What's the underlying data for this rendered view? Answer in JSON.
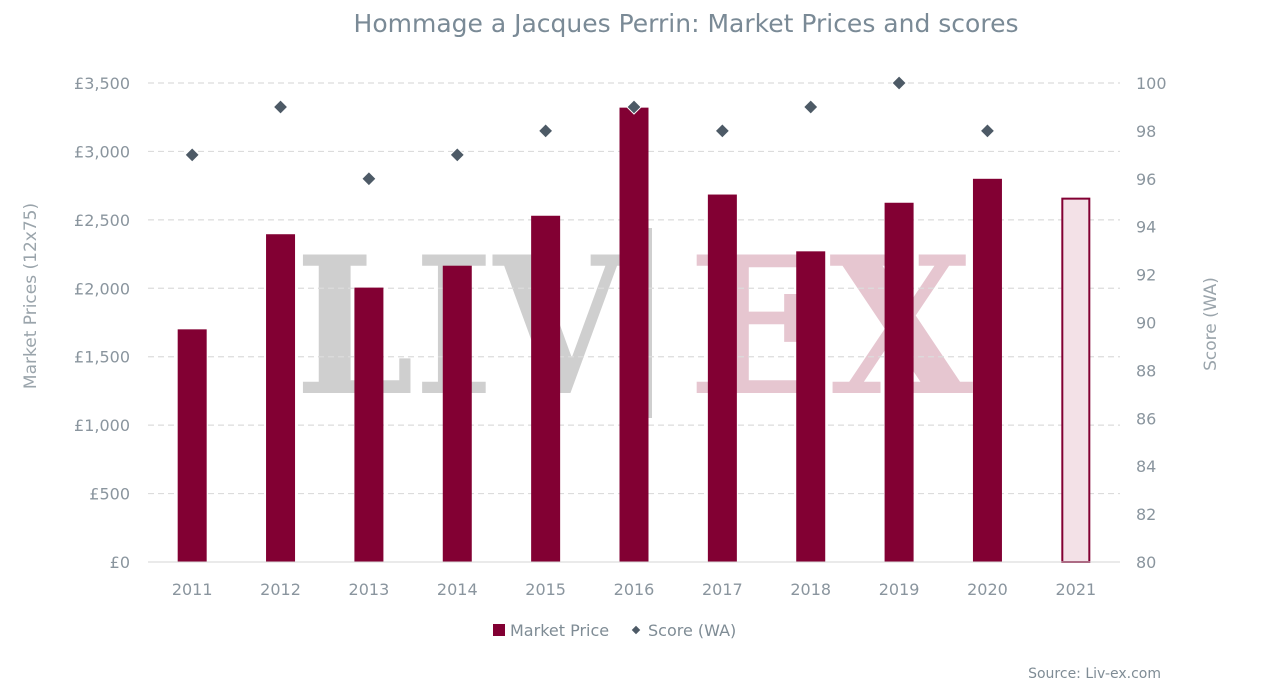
{
  "chart_data": {
    "type": "bar",
    "title": "Hommage a Jacques Perrin: Market Prices and scores",
    "categories": [
      "2011",
      "2012",
      "2013",
      "2014",
      "2015",
      "2016",
      "2017",
      "2018",
      "2019",
      "2020",
      "2021"
    ],
    "series": [
      {
        "name": "Market Price",
        "type": "bar",
        "axis": "left",
        "color": "#820033",
        "values": [
          1700,
          2395,
          2005,
          2165,
          2530,
          3320,
          2685,
          2270,
          2625,
          2800,
          2655
        ]
      },
      {
        "name": "Score (WA)",
        "type": "scatter",
        "axis": "right",
        "color": "#4d5a66",
        "values": [
          97,
          99,
          96,
          97,
          98,
          99,
          98,
          99,
          100,
          98,
          null
        ]
      }
    ],
    "highlight_last_bar": {
      "fill": "#f3e1e7",
      "stroke": "#820033"
    },
    "y_left": {
      "label": "Market Prices (12x75)",
      "lim": [
        0,
        3500
      ],
      "ticks": [
        {
          "value": 0,
          "label": "£0"
        },
        {
          "value": 500,
          "label": "£500"
        },
        {
          "value": 1000,
          "label": "£1,000"
        },
        {
          "value": 1500,
          "label": "£1,500"
        },
        {
          "value": 2000,
          "label": "£2,000"
        },
        {
          "value": 2500,
          "label": "£2,500"
        },
        {
          "value": 3000,
          "label": "£3,000"
        },
        {
          "value": 3500,
          "label": "£3,500"
        }
      ]
    },
    "y_right": {
      "label": "Score (WA)",
      "lim": [
        80,
        100
      ],
      "ticks": [
        {
          "value": 80,
          "label": "80"
        },
        {
          "value": 82,
          "label": "82"
        },
        {
          "value": 84,
          "label": "84"
        },
        {
          "value": 86,
          "label": "86"
        },
        {
          "value": 88,
          "label": "88"
        },
        {
          "value": 90,
          "label": "90"
        },
        {
          "value": 92,
          "label": "92"
        },
        {
          "value": 94,
          "label": "94"
        },
        {
          "value": 96,
          "label": "96"
        },
        {
          "value": 98,
          "label": "98"
        },
        {
          "value": 100,
          "label": "100"
        }
      ]
    },
    "grid": true,
    "legend_position": "bottom-center",
    "source": "Source: Liv-ex.com",
    "watermark": {
      "part1": "LIV",
      "part2": "EX"
    }
  }
}
